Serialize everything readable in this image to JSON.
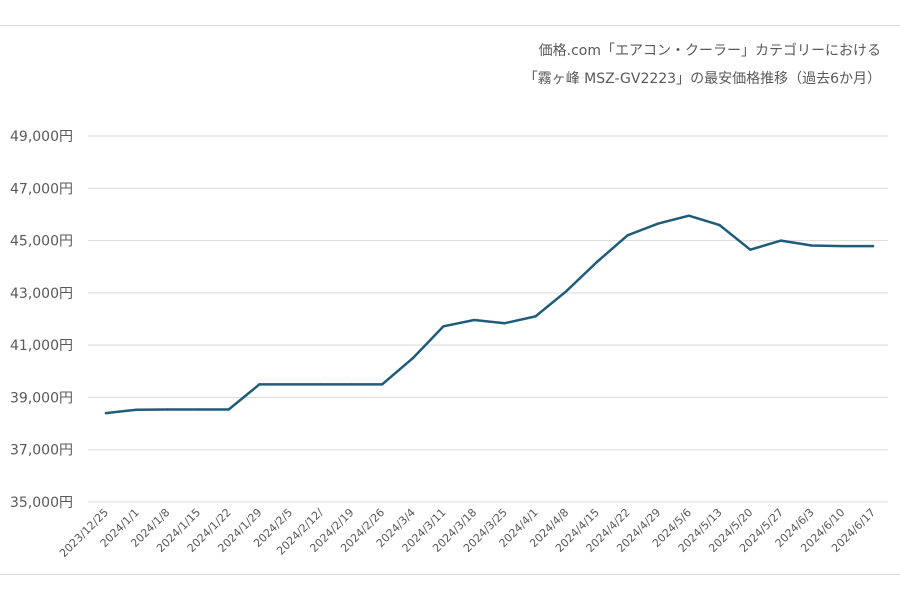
{
  "chart_data": {
    "type": "line",
    "title_lines": [
      "価格.com「エアコン・クーラー」カテゴリーにおける",
      "「霧ヶ峰 MSZ-GV2223」の最安価格推移（過去6か月）"
    ],
    "xlabel": "",
    "ylabel": "",
    "ylim": [
      35000,
      49000
    ],
    "ytick_values": [
      35000,
      37000,
      39000,
      41000,
      43000,
      45000,
      47000,
      49000
    ],
    "ytick_labels": [
      "35,000円",
      "37,000円",
      "39,000円",
      "41,000円",
      "43,000円",
      "45,000円",
      "47,000円",
      "49,000円"
    ],
    "grid": true,
    "legend": "none",
    "line_color": "#1f5c7a",
    "grid_color": "#d9d9d9",
    "categories": [
      "2023/12/25",
      "2024/1/1",
      "2024/1/8",
      "2024/1/15",
      "2024/1/22",
      "2024/1/29",
      "2024/2/5",
      "2024/2/12/",
      "2024/2/19",
      "2024/2/26",
      "2024/3/4",
      "2024/3/11",
      "2024/3/18",
      "2024/3/25",
      "2024/4/1",
      "2024/4/8",
      "2024/4/15",
      "2024/4/22",
      "2024/4/29",
      "2024/5/6",
      "2024/5/13",
      "2024/5/20",
      "2024/5/27",
      "2024/6/3",
      "2024/6/10",
      "2024/6/17"
    ],
    "values": [
      38400,
      38530,
      38540,
      38540,
      38540,
      39500,
      39500,
      39500,
      39500,
      39500,
      40500,
      41720,
      41960,
      41840,
      42100,
      43060,
      44180,
      45200,
      45650,
      45950,
      45590,
      44650,
      45000,
      44810,
      44790,
      44790
    ]
  }
}
